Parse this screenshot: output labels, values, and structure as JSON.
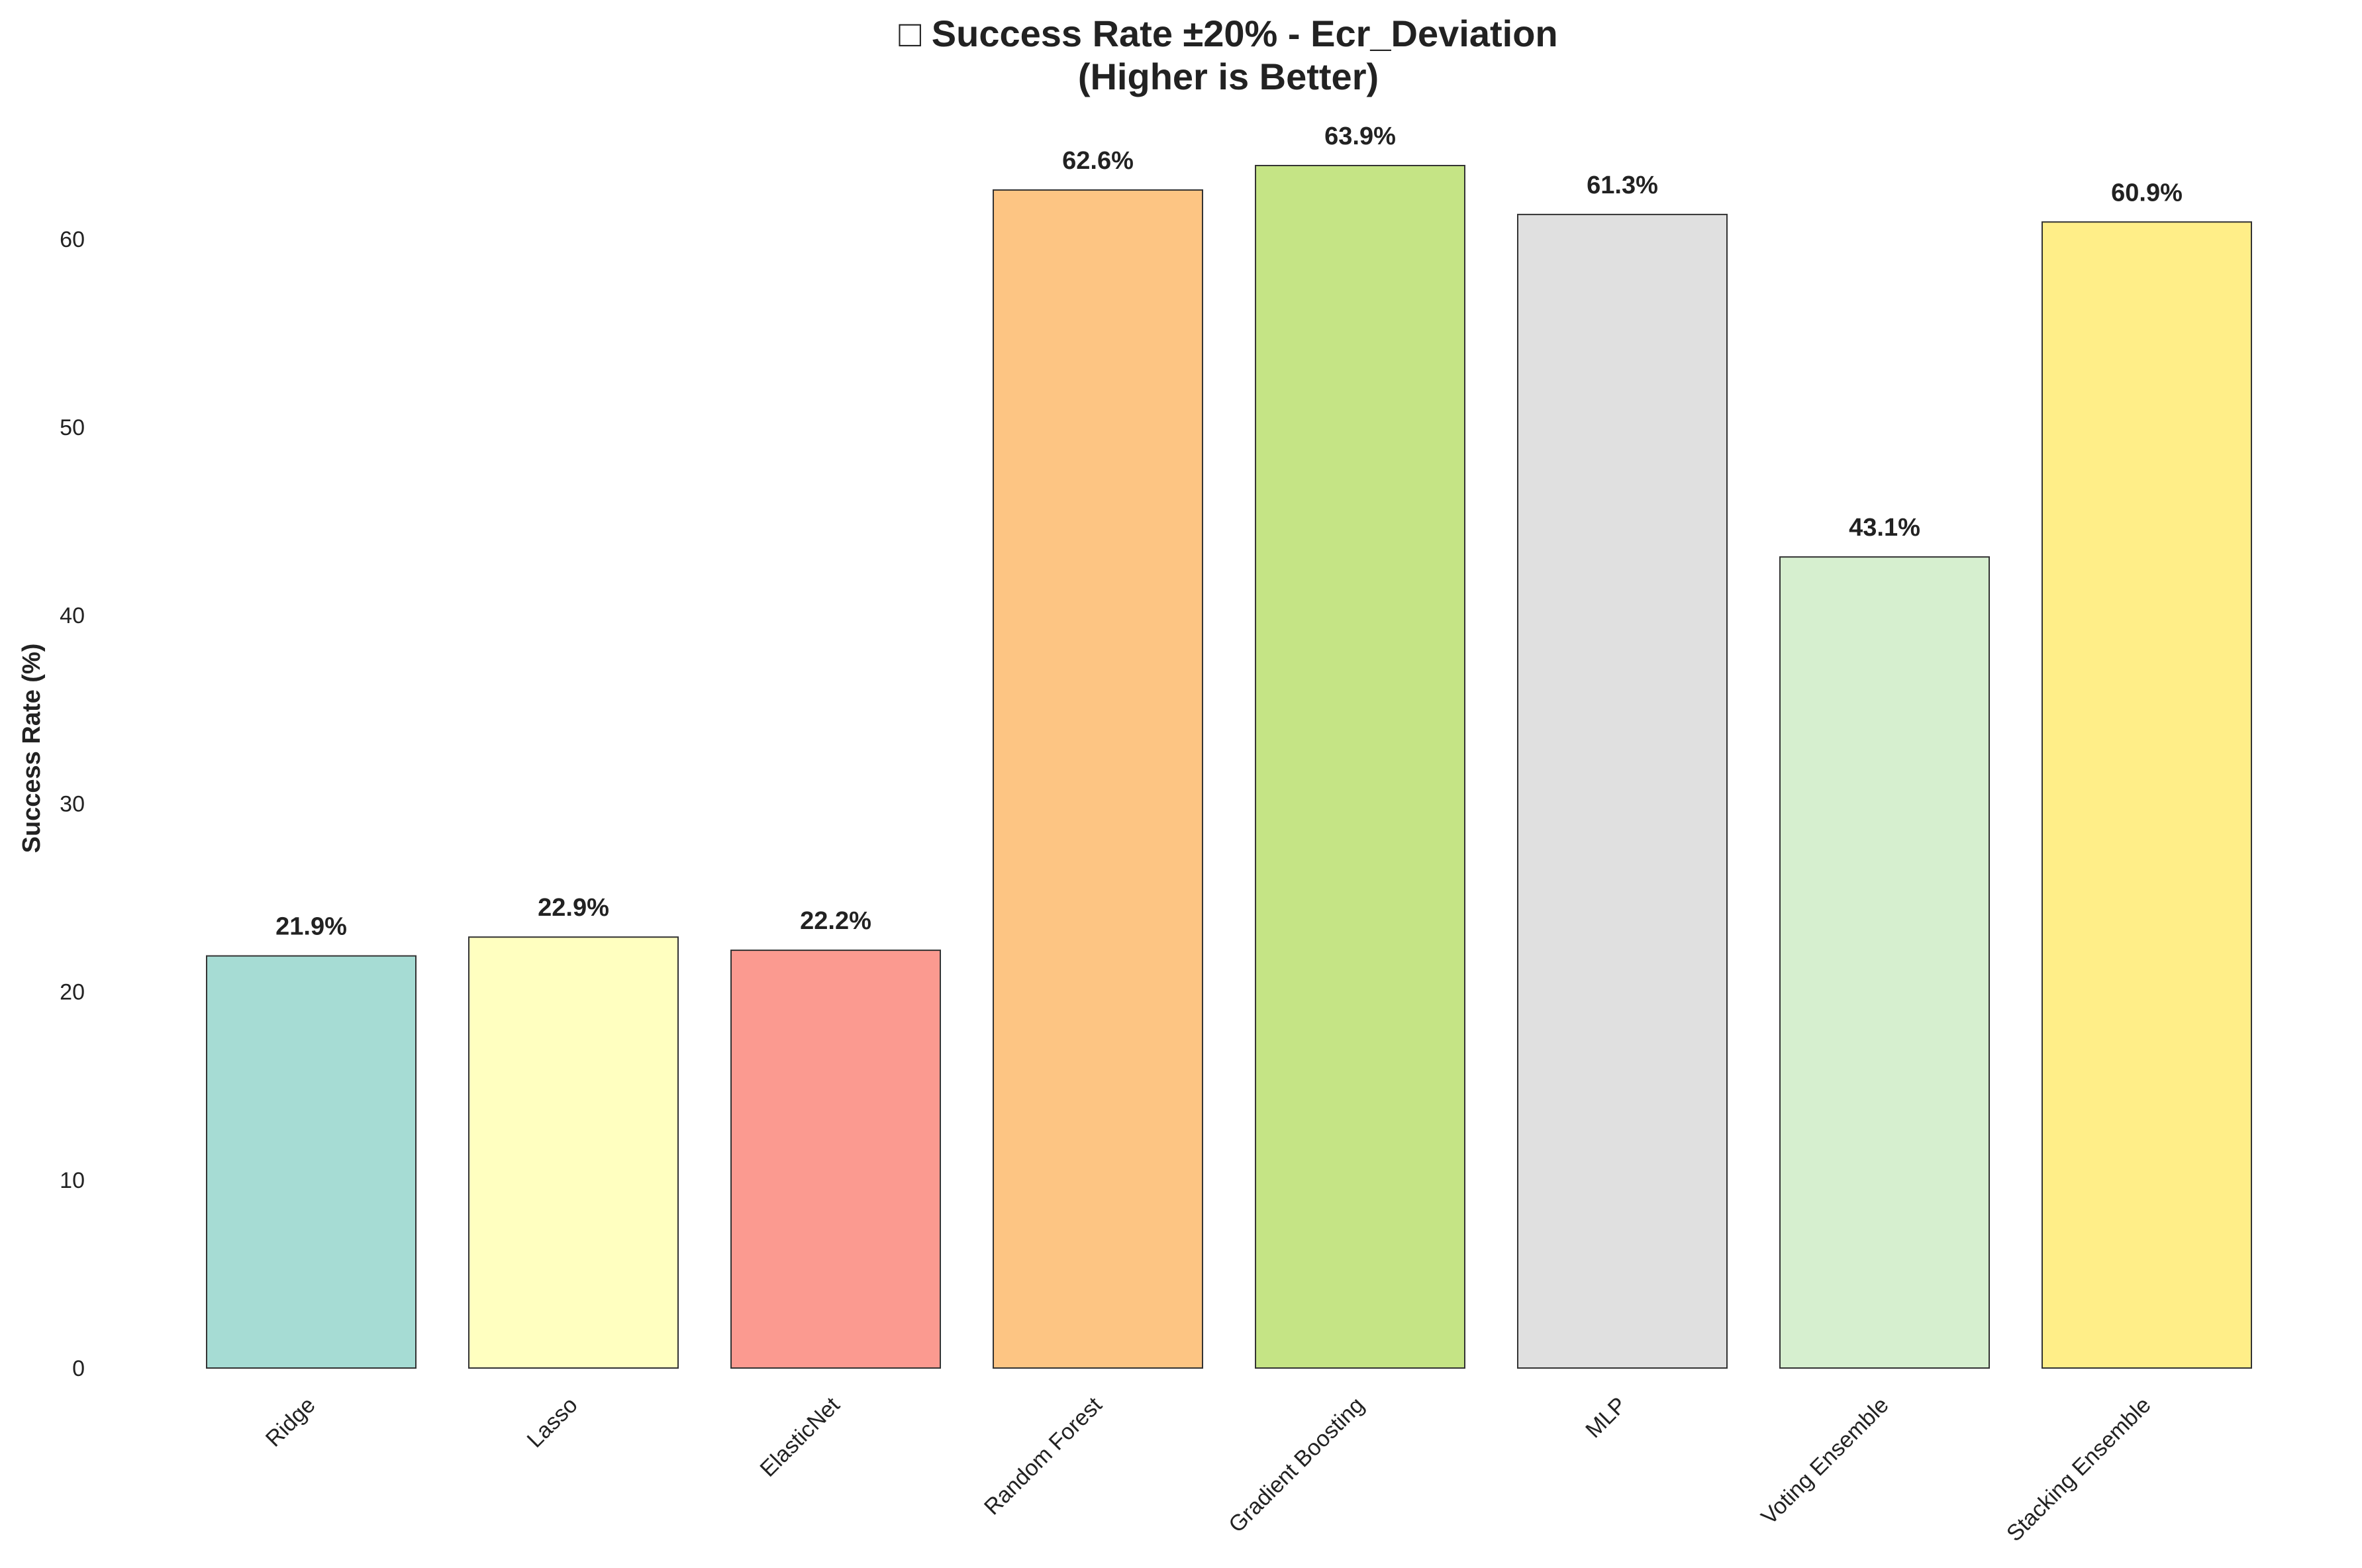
{
  "chart_data": {
    "type": "bar",
    "title_line1": "□ Success Rate ±20% - Ecr_Deviation",
    "title_line2": "(Higher is Better)",
    "xlabel": "",
    "ylabel": "Success Rate (%)",
    "ylim": [
      0,
      66.5
    ],
    "yticks": [
      "0",
      "10",
      "20",
      "30",
      "40",
      "50",
      "60"
    ],
    "categories": [
      "Ridge",
      "Lasso",
      "ElasticNet",
      "Random Forest",
      "Gradient Boosting",
      "MLP",
      "Voting Ensemble",
      "Stacking Ensemble"
    ],
    "values": [
      21.9,
      22.9,
      22.2,
      62.6,
      63.9,
      61.3,
      43.1,
      60.9
    ],
    "data_labels": [
      "21.9%",
      "22.9%",
      "22.2%",
      "62.6%",
      "63.9%",
      "61.3%",
      "43.1%",
      "60.9%"
    ],
    "colors": [
      "#a6dcd4",
      "#ffffc0",
      "#fb9a90",
      "#fdc583",
      "#c5e485",
      "#e0e0e0",
      "#d6efcf",
      "#ffee88"
    ],
    "edge_color": "#333333",
    "grid": false,
    "legend": "none"
  }
}
